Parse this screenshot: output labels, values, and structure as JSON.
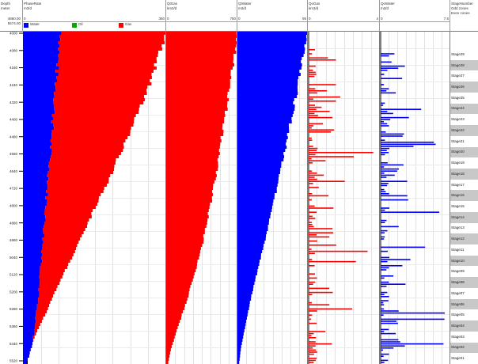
{
  "chart_data": {
    "type": "bar",
    "depth_axis": {
      "title": "Depth",
      "unit": "meter",
      "top_value": "4860.00",
      "bottom_value": "5574.00",
      "ticks": [
        "4000",
        "4080",
        "4160",
        "4240",
        "4320",
        "4400",
        "4480",
        "4560",
        "4640",
        "4720",
        "4800",
        "4880",
        "4960",
        "5040",
        "5120",
        "5200",
        "5280",
        "5360",
        "5440",
        "5520"
      ]
    },
    "tracks": [
      {
        "name": "PhaseRate",
        "unit": "m3/d",
        "min": "0",
        "max": "350",
        "legend": [
          {
            "label": "Water",
            "color": "#0000ff"
          },
          {
            "label": "Oil",
            "color": "#00aa00"
          },
          {
            "label": "Gas",
            "color": "#ff0000"
          }
        ],
        "water_cum_frac": [
          0.27,
          0.25,
          0.24,
          0.23,
          0.22,
          0.21,
          0.2,
          0.19,
          0.18,
          0.17,
          0.16,
          0.15,
          0.14,
          0.13,
          0.12,
          0.11,
          0.09,
          0.08,
          0.06,
          0.02
        ],
        "total_cum_frac": [
          1.0,
          0.96,
          0.92,
          0.88,
          0.83,
          0.78,
          0.73,
          0.67,
          0.62,
          0.56,
          0.5,
          0.45,
          0.39,
          0.33,
          0.27,
          0.21,
          0.16,
          0.1,
          0.05,
          0.02
        ]
      },
      {
        "name": "QtGas",
        "unit": "km3/d",
        "min": "0",
        "max": "750",
        "color": "#ff0000",
        "cum_frac": [
          1.0,
          0.97,
          0.93,
          0.9,
          0.86,
          0.82,
          0.78,
          0.74,
          0.7,
          0.66,
          0.61,
          0.56,
          0.51,
          0.45,
          0.38,
          0.31,
          0.23,
          0.15,
          0.07,
          0.02
        ]
      },
      {
        "name": "QtWater",
        "unit": "m3/d",
        "min": "0",
        "max": "95",
        "color": "#0000ff",
        "cum_frac": [
          1.0,
          0.95,
          0.91,
          0.86,
          0.81,
          0.76,
          0.71,
          0.66,
          0.61,
          0.55,
          0.5,
          0.44,
          0.38,
          0.32,
          0.26,
          0.2,
          0.15,
          0.1,
          0.05,
          0.02
        ]
      },
      {
        "name": "QoGas",
        "unit": "km3/d",
        "min": "0",
        "max": "4",
        "color": "#ff0000"
      },
      {
        "name": "QoWater",
        "unit": "m3/d",
        "min": "0",
        "max": "7.5",
        "color": "#0000ff"
      }
    ],
    "stage_track": {
      "name": "StageNumber",
      "line2": "Odd zones",
      "line3": "Even zones",
      "stages": [
        "Stage29",
        "Stage28",
        "Stage27",
        "Stage26",
        "Stage25",
        "Stage24",
        "Stage23",
        "Stage22",
        "Stage21",
        "Stage20",
        "Stage19",
        "Stage18",
        "Stage17",
        "Stage16",
        "Stage15",
        "Stage14",
        "Stage13",
        "Stage12",
        "Stage11",
        "Stage10",
        "Stage09",
        "Stage08",
        "Stage07",
        "Stage06",
        "Stage05",
        "Stage04",
        "Stage03",
        "Stage02",
        "Stage01"
      ]
    }
  }
}
